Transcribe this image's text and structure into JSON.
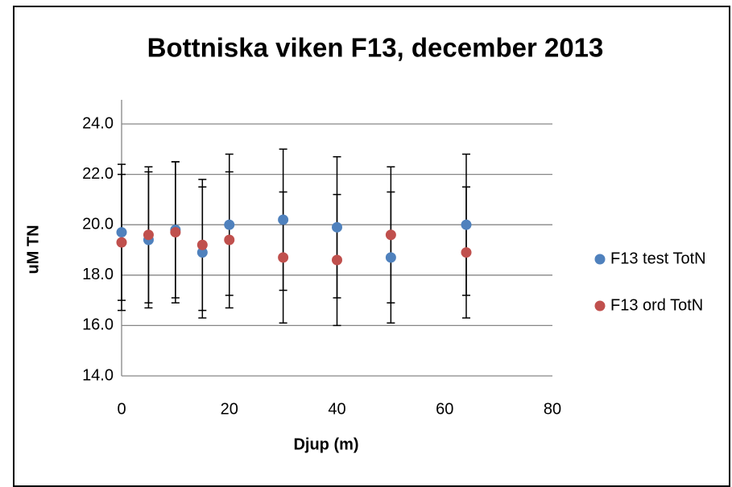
{
  "chart_data": {
    "type": "scatter",
    "title": "Bottniska viken F13, december 2013",
    "x_label": "Djup (m)",
    "y_label": "uM TN",
    "x": [
      0,
      5,
      10,
      15,
      20,
      30,
      40,
      50,
      64
    ],
    "series": [
      {
        "name": "F13 test TotN",
        "color": "#4f81bd",
        "values": [
          19.7,
          19.4,
          19.8,
          18.9,
          20.0,
          20.2,
          19.9,
          18.7,
          20.0
        ],
        "error": [
          2.7,
          2.7,
          2.7,
          2.6,
          2.8,
          2.8,
          2.8,
          2.6,
          2.8
        ]
      },
      {
        "name": "F13 ord TotN",
        "color": "#c0504d",
        "values": [
          19.3,
          19.6,
          19.7,
          19.2,
          19.4,
          18.7,
          18.6,
          19.6,
          18.9
        ],
        "error": [
          2.7,
          2.7,
          2.8,
          2.6,
          2.7,
          2.6,
          2.6,
          2.7,
          2.6
        ]
      }
    ],
    "error_color": "#000000",
    "xlim": [
      0,
      80
    ],
    "xticks": [
      0,
      20,
      40,
      60,
      80
    ],
    "ylim": [
      14,
      24
    ],
    "yticks": [
      {
        "value": 14,
        "label": "14.0"
      },
      {
        "value": 16,
        "label": "16.0"
      },
      {
        "value": 18,
        "label": "18.0"
      },
      {
        "value": 20,
        "label": "20.0"
      },
      {
        "value": 22,
        "label": "22.0"
      },
      {
        "value": 24,
        "label": "24.0"
      }
    ],
    "grid": true,
    "legend": "right"
  }
}
